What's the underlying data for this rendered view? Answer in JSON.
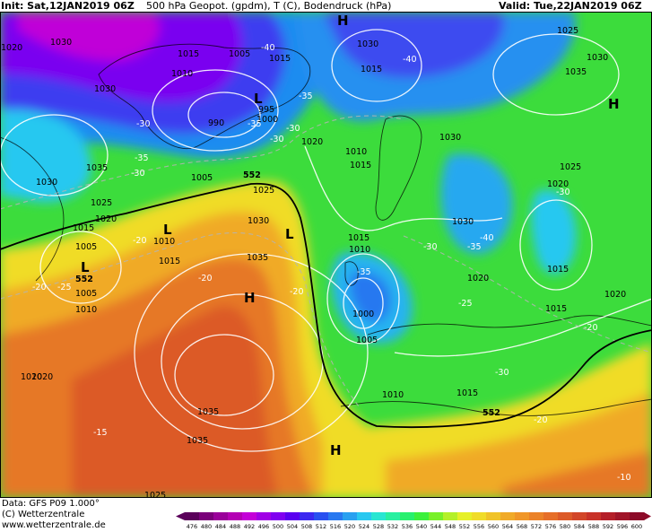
{
  "header": {
    "init": "Init: Sat,12JAN2019 06Z",
    "fields": "500 hPa Geopot. (gpdm), T (C), Bodendruck (hPa)",
    "valid": "Valid: Tue,22JAN2019 06Z"
  },
  "footer": {
    "data_source": "Data: GFS P09 1.000°",
    "copyright": "(C) Wetterzentrale",
    "website": "www.wetterzentrale.de"
  },
  "colorbar": {
    "ticks": [
      "476",
      "480",
      "484",
      "488",
      "492",
      "496",
      "500",
      "504",
      "508",
      "512",
      "516",
      "520",
      "524",
      "528",
      "532",
      "536",
      "540",
      "544",
      "548",
      "552",
      "556",
      "560",
      "564",
      "568",
      "572",
      "576",
      "580",
      "584",
      "588",
      "592",
      "596",
      "600"
    ],
    "colors": [
      "#5a005a",
      "#7a007a",
      "#9a009a",
      "#b400b4",
      "#c400d8",
      "#a000e6",
      "#8000f0",
      "#5a00f0",
      "#3c28f0",
      "#2850f0",
      "#2878f0",
      "#28a0f0",
      "#28c8f0",
      "#28e6d2",
      "#28f0a0",
      "#28f06e",
      "#3cf03c",
      "#78f028",
      "#b4f028",
      "#e6f028",
      "#f0dc28",
      "#f0c328",
      "#f0aa28",
      "#f09628",
      "#eb8228",
      "#e66e28",
      "#dc5a28",
      "#d24628",
      "#c83228",
      "#b41e28",
      "#a01428",
      "#8c0a28"
    ]
  },
  "pressure_labels": [
    "1030",
    "1015",
    "1005",
    "1015",
    "1010",
    "1030",
    "1030",
    "1015",
    "1005",
    "1000",
    "990",
    "1020",
    "1010",
    "1015",
    "1030",
    "1035",
    "1030",
    "1005",
    "1025",
    "1035",
    "1025",
    "1020",
    "1015",
    "1010",
    "1015",
    "1020",
    "1005",
    "1010",
    "1030",
    "1035",
    "1015",
    "1010",
    "1020",
    "1000",
    "1005",
    "1010",
    "1015",
    "1015",
    "1020",
    "1035",
    "1030",
    "1020",
    "1015",
    "1025",
    "1025",
    "1030",
    "1020",
    "1020",
    "995",
    "1035",
    "1025"
  ],
  "temperature_labels": [
    "-40",
    "-35",
    "-30",
    "-30",
    "-35",
    "-30",
    "-20",
    "-35",
    "-40",
    "-30",
    "-35",
    "-30",
    "-30",
    "-20",
    "-25",
    "-30",
    "-20",
    "-20",
    "-15",
    "-20",
    "-40",
    "-25",
    "-10",
    "-20",
    "-35"
  ],
  "center_labels": [
    "H",
    "L",
    "L",
    "L",
    "L",
    "H",
    "H",
    "H"
  ],
  "contour_label": "552"
}
